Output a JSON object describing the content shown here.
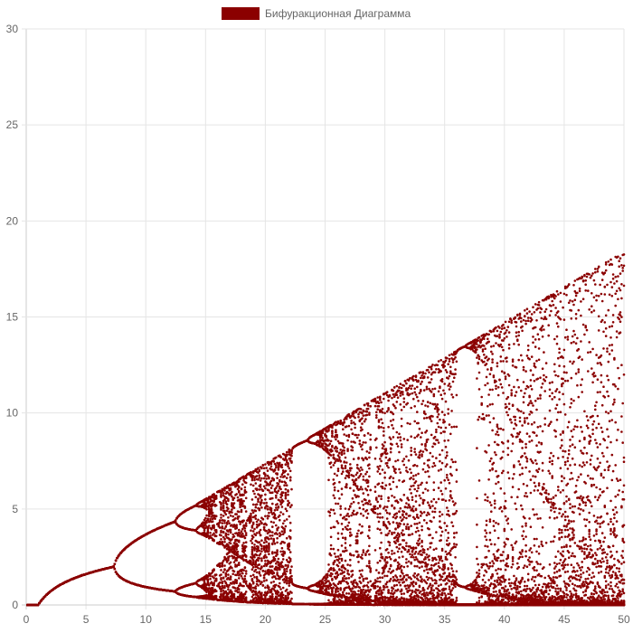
{
  "chart_data": {
    "type": "scatter",
    "series": [
      {
        "name": "Бифуракционная Диаграмма",
        "color": "#8b0000",
        "model": "x(n+1) = r * x(n) * exp(-x(n))",
        "r_min": 0.1,
        "r_max": 50,
        "r_steps": 500,
        "transient_iterations": 200,
        "kept_iterations_per_r": 30,
        "initial_x": 0.5
      }
    ],
    "xlim": [
      0,
      50
    ],
    "ylim": [
      0,
      30
    ],
    "x_ticks": [
      0,
      5,
      10,
      15,
      20,
      25,
      30,
      35,
      40,
      45,
      50
    ],
    "y_ticks": [
      0,
      5,
      10,
      15,
      20,
      25,
      30
    ],
    "grid": true,
    "legend_position": "top"
  }
}
